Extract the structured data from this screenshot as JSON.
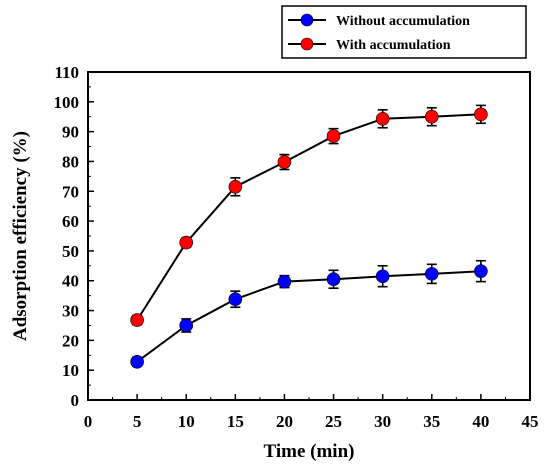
{
  "chart_data": {
    "type": "line",
    "title": "",
    "xlabel": "Time (min)",
    "ylabel": "Adsorption efficiency (%)",
    "xlim": [
      0,
      45
    ],
    "ylim": [
      0,
      110
    ],
    "x_ticks": [
      0,
      5,
      10,
      15,
      20,
      25,
      30,
      35,
      40,
      45
    ],
    "y_ticks": [
      0,
      10,
      20,
      30,
      40,
      50,
      60,
      70,
      80,
      90,
      100,
      110
    ],
    "grid": false,
    "legend_position": "top-right",
    "x": [
      5,
      10,
      15,
      20,
      25,
      30,
      35,
      40
    ],
    "series": [
      {
        "name": "Without accumulation",
        "color": "#0000ff",
        "marker": "circle",
        "values": [
          12.8,
          25.0,
          33.8,
          39.7,
          40.5,
          41.5,
          42.3,
          43.2
        ],
        "errors": [
          1.5,
          2.2,
          2.7,
          2.0,
          3.0,
          3.5,
          3.2,
          3.5
        ]
      },
      {
        "name": "With accumulation",
        "color": "#ff0000",
        "marker": "circle",
        "values": [
          26.8,
          52.8,
          71.5,
          79.8,
          88.5,
          94.3,
          95.0,
          95.8
        ],
        "errors": [
          1.5,
          1.5,
          3.0,
          2.5,
          2.5,
          3.0,
          3.0,
          3.0
        ]
      }
    ]
  }
}
